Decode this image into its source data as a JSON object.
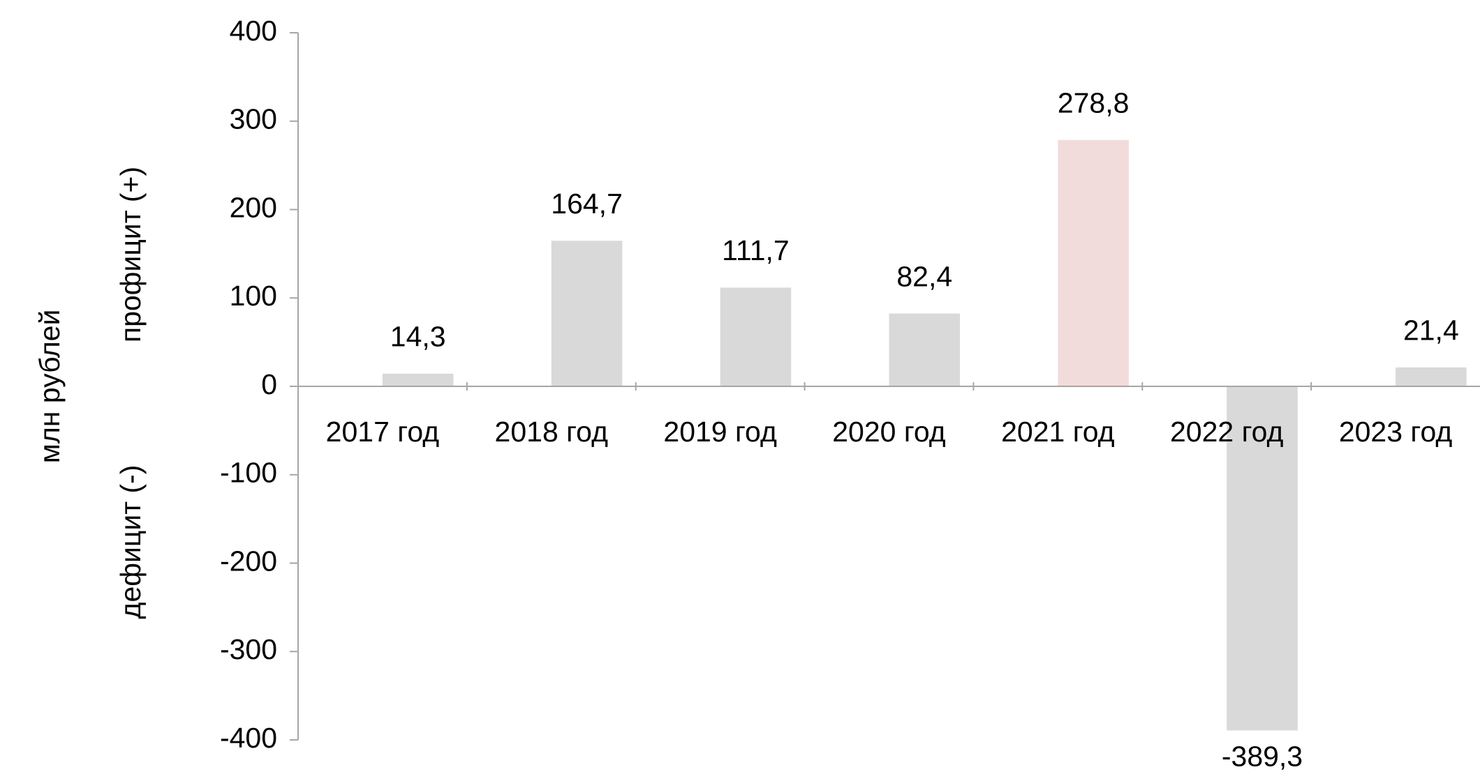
{
  "chart_data": {
    "type": "bar",
    "y_labels": [
      "млн рублей",
      "профицит (+)",
      "дефицит (-)"
    ],
    "y_label_colors": [
      "#000000",
      "#000000",
      "#c00000"
    ],
    "categories": [
      "2017 год",
      "2018 год",
      "2019 год",
      "2020 год",
      "2021 год",
      "2022 год",
      "2023 год"
    ],
    "values": [
      14.3,
      164.7,
      111.7,
      82.4,
      278.8,
      -389.3,
      21.4
    ],
    "value_labels": [
      "14,3",
      "164,7",
      "111,7",
      "82,4",
      "278,8",
      "-389,3",
      "21,4"
    ],
    "colors": [
      "#d9d9d9",
      "#d9d9d9",
      "#d9d9d9",
      "#d9d9d9",
      "#f2dcdb",
      "#d9d9d9",
      "#d9d9d9"
    ],
    "ylim": [
      -400,
      400
    ],
    "yticks": [
      -400,
      -300,
      -200,
      -100,
      0,
      100,
      200,
      300,
      400
    ],
    "grid": false
  }
}
